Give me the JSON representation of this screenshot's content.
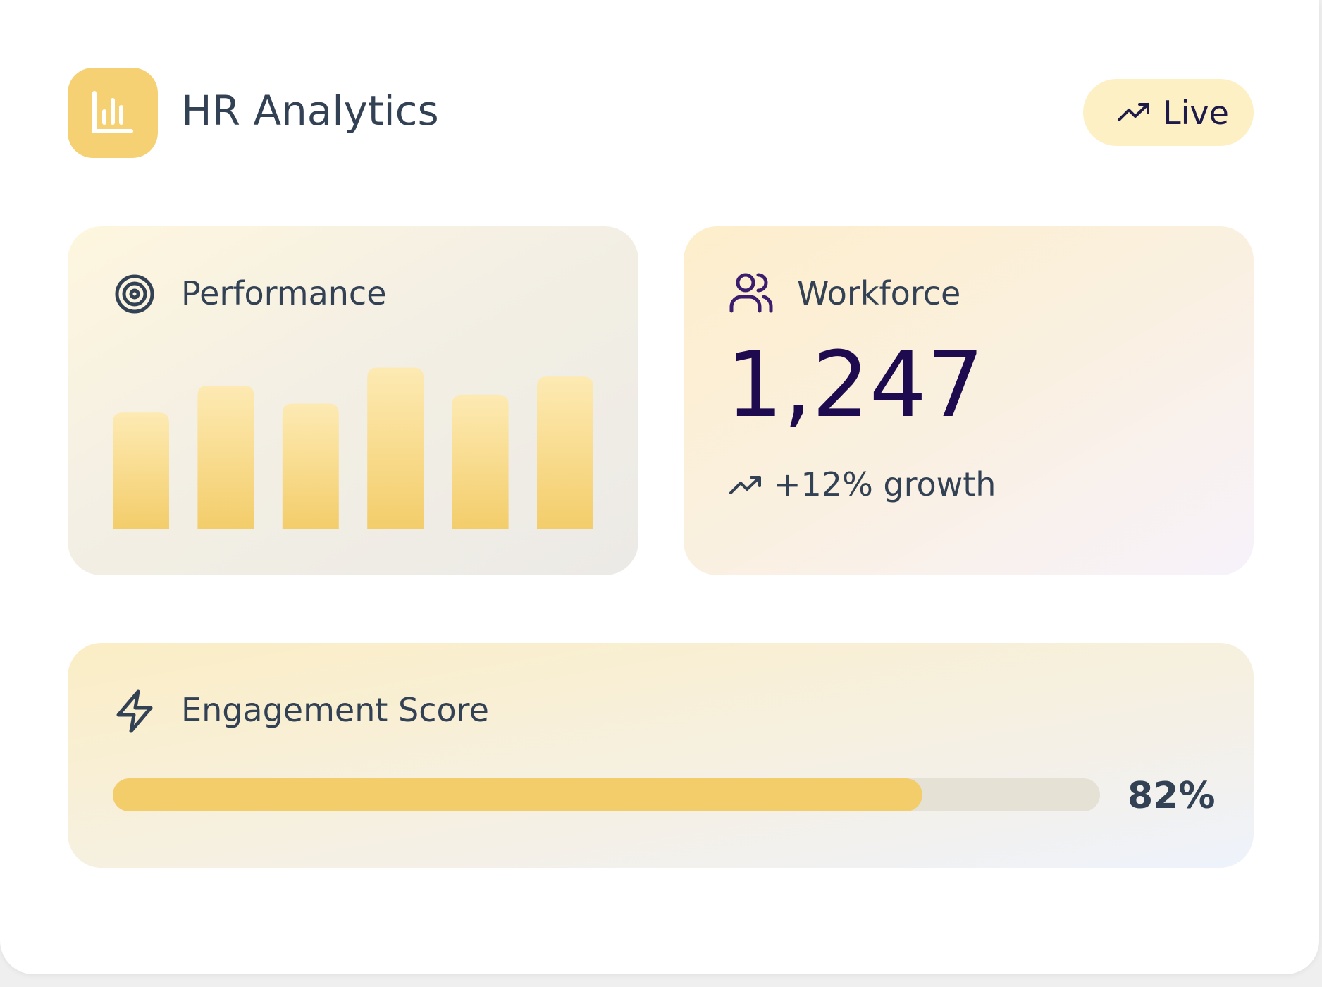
{
  "header": {
    "title": "HR Analytics",
    "badge": "Live"
  },
  "workforce": {
    "label": "Workforce",
    "value": "1,247",
    "change": "+12% growth"
  },
  "chart_data": [
    {
      "type": "bar",
      "title": "Performance",
      "values": [
        65,
        80,
        70,
        90,
        75,
        85
      ],
      "ylim": [
        0,
        100
      ],
      "color": "#f3cd6a"
    },
    {
      "type": "progress",
      "title": "Engagement Score",
      "values": [
        82
      ],
      "value_labels": [
        "82%"
      ],
      "xlim": [
        0,
        100
      ],
      "color": "#f3cd6a"
    }
  ]
}
